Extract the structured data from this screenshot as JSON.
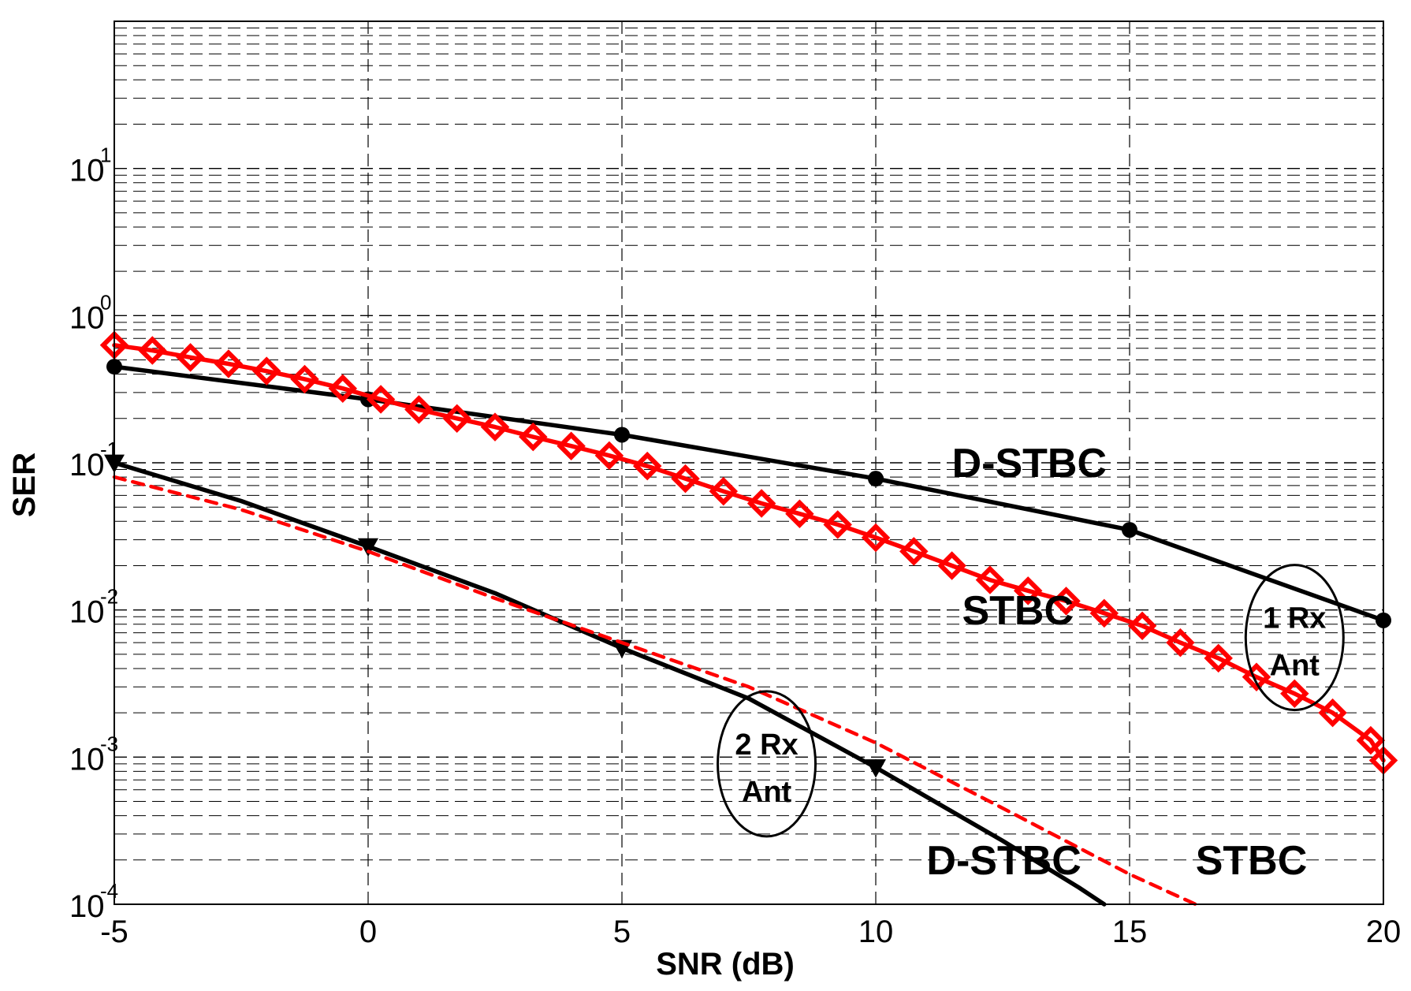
{
  "chart_data": {
    "type": "line",
    "xlabel": "SNR (dB)",
    "ylabel": "SER",
    "xlim": [
      -5,
      20
    ],
    "ylim": [
      0.0001,
      100
    ],
    "yscale": "log",
    "grid": true,
    "xticks": [
      "-5",
      "0",
      "5",
      "10",
      "15",
      "20"
    ],
    "yticks": [
      {
        "value": 0.0001,
        "base": "10",
        "exp": "-4"
      },
      {
        "value": 0.001,
        "base": "10",
        "exp": "-3"
      },
      {
        "value": 0.01,
        "base": "10",
        "exp": "-2"
      },
      {
        "value": 0.1,
        "base": "10",
        "exp": "-1"
      },
      {
        "value": 1,
        "base": "10",
        "exp": "0"
      },
      {
        "value": 10,
        "base": "10",
        "exp": "1"
      }
    ],
    "series": [
      {
        "color": "#000000",
        "style": "solid",
        "marker": "circle",
        "x": [
          -5,
          0,
          5,
          10,
          15,
          20
        ],
        "y": [
          0.45,
          0.27,
          0.155,
          0.078,
          0.035,
          0.0085
        ]
      },
      {
        "color": "#ff0000",
        "style": "solid",
        "marker": "diamond",
        "x": [
          -5,
          -4.25,
          -3.5,
          -2.75,
          -2,
          -1.25,
          -0.5,
          0.25,
          1,
          1.75,
          2.5,
          3.25,
          4,
          4.75,
          5.5,
          6.25,
          7,
          7.75,
          8.5,
          9.25,
          10,
          10.75,
          11.5,
          12.25,
          13,
          13.75,
          14.5,
          15.25,
          16,
          16.75,
          17.5,
          18.25,
          19,
          19.75,
          20
        ],
        "y": [
          0.63,
          0.58,
          0.52,
          0.47,
          0.42,
          0.37,
          0.32,
          0.27,
          0.23,
          0.2,
          0.175,
          0.15,
          0.13,
          0.112,
          0.095,
          0.078,
          0.064,
          0.053,
          0.045,
          0.038,
          0.031,
          0.025,
          0.02,
          0.016,
          0.0135,
          0.0115,
          0.0095,
          0.0078,
          0.006,
          0.0047,
          0.0035,
          0.0027,
          0.002,
          0.0013,
          0.00095
        ]
      },
      {
        "color": "#000000",
        "style": "solid",
        "marker": "triangle-down",
        "x": [
          -5,
          -2.5,
          0,
          2.5,
          5,
          7.5,
          10,
          12.5,
          14,
          14.5
        ],
        "y": [
          0.1,
          0.055,
          0.027,
          0.013,
          0.0055,
          0.0025,
          0.00085,
          0.00027,
          0.00013,
          0.0001
        ]
      },
      {
        "color": "#ff0000",
        "style": "dashed",
        "marker": "none",
        "x": [
          -5,
          -2.5,
          0,
          2.5,
          5,
          7.5,
          10,
          12.5,
          15,
          16.3
        ],
        "y": [
          0.08,
          0.048,
          0.025,
          0.012,
          0.006,
          0.003,
          0.00125,
          0.00045,
          0.00016,
          0.0001
        ]
      }
    ],
    "annotations": [
      {
        "text": "D-STBC",
        "x": 11.5,
        "y": 0.08
      },
      {
        "text": "STBC",
        "x": 11.7,
        "y": 0.008
      },
      {
        "text": "D-STBC",
        "x": 11.0,
        "y": 0.00016
      },
      {
        "text": "STBC",
        "x": 16.3,
        "y": 0.00016
      }
    ],
    "ellipse_labels": [
      {
        "line1": "1 Rx",
        "line2": "Ant",
        "cx": 18.25,
        "cy": 0.0065
      },
      {
        "line1": "2 Rx",
        "line2": "Ant",
        "cx": 7.85,
        "cy": 0.0009
      }
    ]
  }
}
